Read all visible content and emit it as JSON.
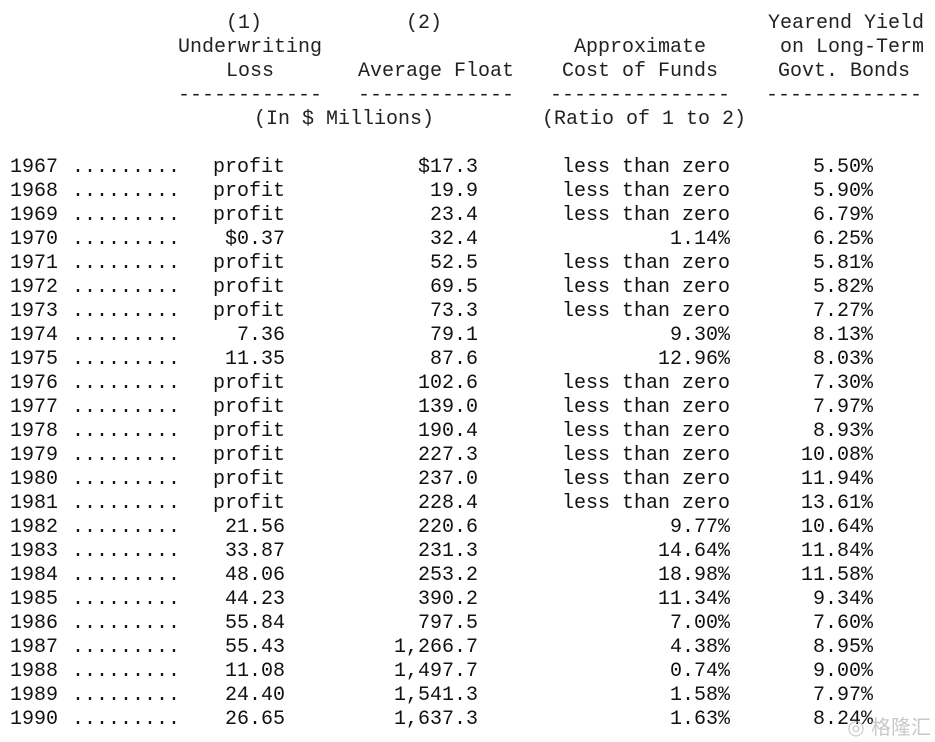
{
  "header": {
    "col1": {
      "num": "(1)",
      "line1": "Underwriting",
      "line2": "Loss",
      "rule": "------------"
    },
    "col2": {
      "num": "(2)",
      "line2": "Average Float",
      "rule": "-------------"
    },
    "col3": {
      "line1": "Approximate",
      "line2": "Cost of Funds",
      "rule": "---------------"
    },
    "col4": {
      "line0": "Yearend Yield",
      "line1": "on Long-Term",
      "line2": "Govt. Bonds",
      "rule": "-------------"
    },
    "units_left": "(In $ Millions)",
    "units_right": "(Ratio of 1 to 2)"
  },
  "leader": ".........",
  "rows": [
    {
      "year": "1967",
      "loss": "profit",
      "float": "$17.3",
      "cost": "less than zero",
      "yield": "5.50%"
    },
    {
      "year": "1968",
      "loss": "profit",
      "float": "19.9",
      "cost": "less than zero",
      "yield": "5.90%"
    },
    {
      "year": "1969",
      "loss": "profit",
      "float": "23.4",
      "cost": "less than zero",
      "yield": "6.79%"
    },
    {
      "year": "1970",
      "loss": "$0.37",
      "float": "32.4",
      "cost": "1.14%",
      "yield": "6.25%"
    },
    {
      "year": "1971",
      "loss": "profit",
      "float": "52.5",
      "cost": "less than zero",
      "yield": "5.81%"
    },
    {
      "year": "1972",
      "loss": "profit",
      "float": "69.5",
      "cost": "less than zero",
      "yield": "5.82%"
    },
    {
      "year": "1973",
      "loss": "profit",
      "float": "73.3",
      "cost": "less than zero",
      "yield": "7.27%"
    },
    {
      "year": "1974",
      "loss": "7.36",
      "float": "79.1",
      "cost": "9.30%",
      "yield": "8.13%"
    },
    {
      "year": "1975",
      "loss": "11.35",
      "float": "87.6",
      "cost": "12.96%",
      "yield": "8.03%"
    },
    {
      "year": "1976",
      "loss": "profit",
      "float": "102.6",
      "cost": "less than zero",
      "yield": "7.30%"
    },
    {
      "year": "1977",
      "loss": "profit",
      "float": "139.0",
      "cost": "less than zero",
      "yield": "7.97%"
    },
    {
      "year": "1978",
      "loss": "profit",
      "float": "190.4",
      "cost": "less than zero",
      "yield": "8.93%"
    },
    {
      "year": "1979",
      "loss": "profit",
      "float": "227.3",
      "cost": "less than zero",
      "yield": "10.08%"
    },
    {
      "year": "1980",
      "loss": "profit",
      "float": "237.0",
      "cost": "less than zero",
      "yield": "11.94%"
    },
    {
      "year": "1981",
      "loss": "profit",
      "float": "228.4",
      "cost": "less than zero",
      "yield": "13.61%"
    },
    {
      "year": "1982",
      "loss": "21.56",
      "float": "220.6",
      "cost": "9.77%",
      "yield": "10.64%"
    },
    {
      "year": "1983",
      "loss": "33.87",
      "float": "231.3",
      "cost": "14.64%",
      "yield": "11.84%"
    },
    {
      "year": "1984",
      "loss": "48.06",
      "float": "253.2",
      "cost": "18.98%",
      "yield": "11.58%"
    },
    {
      "year": "1985",
      "loss": "44.23",
      "float": "390.2",
      "cost": "11.34%",
      "yield": "9.34%"
    },
    {
      "year": "1986",
      "loss": "55.84",
      "float": "797.5",
      "cost": "7.00%",
      "yield": "7.60%"
    },
    {
      "year": "1987",
      "loss": "55.43",
      "float": "1,266.7",
      "cost": "4.38%",
      "yield": "8.95%"
    },
    {
      "year": "1988",
      "loss": "11.08",
      "float": "1,497.7",
      "cost": "0.74%",
      "yield": "9.00%"
    },
    {
      "year": "1989",
      "loss": "24.40",
      "float": "1,541.3",
      "cost": "1.58%",
      "yield": "7.97%"
    },
    {
      "year": "1990",
      "loss": "26.65",
      "float": "1,637.3",
      "cost": "1.63%",
      "yield": "8.24%"
    }
  ],
  "watermark": "格隆汇"
}
